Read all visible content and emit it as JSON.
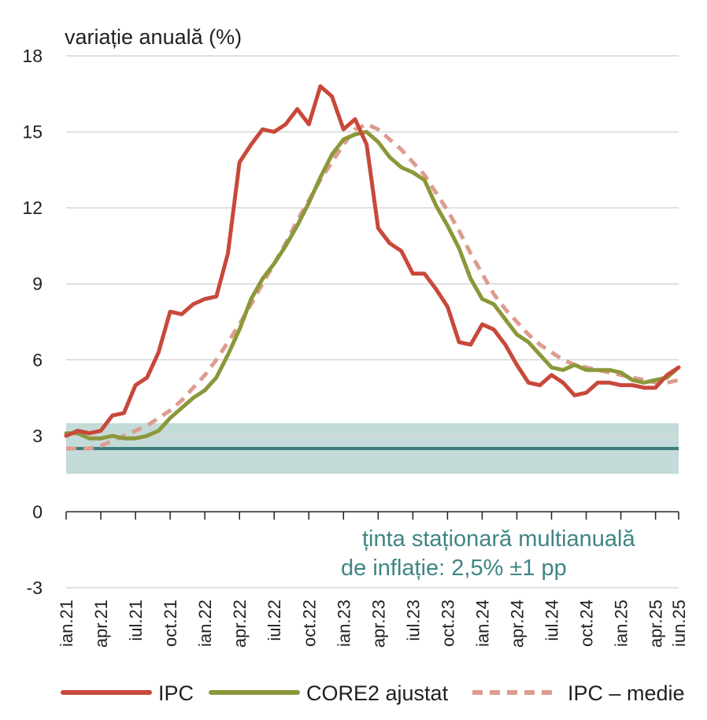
{
  "colors": {
    "ipc": "#c8483a",
    "core2": "#8c973a",
    "mean": "#dd9c8f",
    "target_line": "#3a7e7c",
    "target_band": "#c3dcd9",
    "grid": "#d6d6d6",
    "axis": "#231f20"
  },
  "chart_data": {
    "type": "line",
    "ylabel": "variație anuală (%)",
    "ylim": [
      -3,
      18
    ],
    "yticks": [
      -3,
      0,
      3,
      6,
      9,
      12,
      15,
      18
    ],
    "grid": true,
    "legend_position": "bottom",
    "x": [
      "ian.21",
      "feb.21",
      "mar.21",
      "apr.21",
      "mai.21",
      "iun.21",
      "iul.21",
      "aug.21",
      "sep.21",
      "oct.21",
      "nov.21",
      "dec.21",
      "ian.22",
      "feb.22",
      "mar.22",
      "apr.22",
      "mai.22",
      "iun.22",
      "iul.22",
      "aug.22",
      "sep.22",
      "oct.22",
      "nov.22",
      "dec.22",
      "ian.23",
      "feb.23",
      "mar.23",
      "apr.23",
      "mai.23",
      "iun.23",
      "iul.23",
      "aug.23",
      "sep.23",
      "oct.23",
      "nov.23",
      "dec.23",
      "ian.24",
      "feb.24",
      "mar.24",
      "apr.24",
      "mai.24",
      "iun.24",
      "iul.24",
      "aug.24",
      "sep.24",
      "oct.24",
      "nov.24",
      "dec.24",
      "ian.25",
      "feb.25",
      "mar.25",
      "apr.25",
      "mai.25",
      "iun.25"
    ],
    "x_tick_labels": [
      {
        "label": "ian.21",
        "index": 0
      },
      {
        "label": "apr.21",
        "index": 3
      },
      {
        "label": "iul.21",
        "index": 6
      },
      {
        "label": "oct.21",
        "index": 9
      },
      {
        "label": "ian.22",
        "index": 12
      },
      {
        "label": "apr.22",
        "index": 15
      },
      {
        "label": "iul.22",
        "index": 18
      },
      {
        "label": "oct.22",
        "index": 21
      },
      {
        "label": "ian.23",
        "index": 24
      },
      {
        "label": "apr.23",
        "index": 27
      },
      {
        "label": "iul.23",
        "index": 30
      },
      {
        "label": "oct.23",
        "index": 33
      },
      {
        "label": "ian.24",
        "index": 36
      },
      {
        "label": "apr.24",
        "index": 39
      },
      {
        "label": "iul.24",
        "index": 42
      },
      {
        "label": "oct.24",
        "index": 45
      },
      {
        "label": "ian.25",
        "index": 48
      },
      {
        "label": "apr.25",
        "index": 51
      },
      {
        "label": "iun.25",
        "index": 53
      }
    ],
    "series": [
      {
        "name": "IPC",
        "style": "solid",
        "values": [
          3.0,
          3.2,
          3.1,
          3.2,
          3.8,
          3.9,
          5.0,
          5.3,
          6.3,
          7.9,
          7.8,
          8.2,
          8.4,
          8.5,
          10.2,
          13.8,
          14.5,
          15.1,
          15.0,
          15.3,
          15.9,
          15.3,
          16.8,
          16.4,
          15.1,
          15.5,
          14.5,
          11.2,
          10.6,
          10.3,
          9.4,
          9.4,
          8.8,
          8.1,
          6.7,
          6.6,
          7.4,
          7.2,
          6.6,
          5.8,
          5.1,
          5.0,
          5.4,
          5.1,
          4.6,
          4.7,
          5.1,
          5.1,
          5.0,
          5.0,
          4.9,
          4.9,
          5.4,
          5.7
        ]
      },
      {
        "name": "CORE2 ajustat",
        "style": "solid",
        "values": [
          3.1,
          3.1,
          2.9,
          2.9,
          3.0,
          2.9,
          2.9,
          3.0,
          3.2,
          3.7,
          4.1,
          4.5,
          4.8,
          5.3,
          6.2,
          7.2,
          8.4,
          9.2,
          9.8,
          10.5,
          11.3,
          12.2,
          13.2,
          14.1,
          14.7,
          14.9,
          15.0,
          14.6,
          14.0,
          13.6,
          13.4,
          13.1,
          12.1,
          11.3,
          10.4,
          9.2,
          8.4,
          8.2,
          7.6,
          7.0,
          6.7,
          6.2,
          5.7,
          5.6,
          5.8,
          5.6,
          5.6,
          5.6,
          5.5,
          5.2,
          5.1,
          5.2,
          5.3,
          5.7
        ]
      },
      {
        "name": "IPC – medie",
        "style": "dashed",
        "values": [
          2.5,
          2.5,
          2.5,
          2.6,
          2.8,
          3.0,
          3.2,
          3.4,
          3.7,
          4.0,
          4.4,
          4.9,
          5.4,
          6.0,
          6.7,
          7.4,
          8.2,
          9.0,
          9.8,
          10.6,
          11.5,
          12.3,
          13.1,
          13.8,
          14.5,
          15.1,
          15.3,
          15.1,
          14.7,
          14.3,
          13.8,
          13.3,
          12.6,
          11.9,
          11.1,
          10.2,
          9.4,
          8.6,
          8.0,
          7.5,
          7.0,
          6.6,
          6.3,
          6.0,
          5.8,
          5.7,
          5.6,
          5.5,
          5.4,
          5.3,
          5.2,
          5.1,
          5.1,
          5.2
        ]
      }
    ],
    "target": {
      "value": 2.5,
      "band": [
        1.5,
        3.5
      ]
    },
    "annotation": [
      "ținta staționară multianuală",
      "de inflație: 2,5% ±1 pp"
    ]
  },
  "legend": [
    {
      "label": "IPC",
      "style": "solid",
      "color_key": "ipc"
    },
    {
      "label": "CORE2 ajustat",
      "style": "solid",
      "color_key": "core2"
    },
    {
      "label": "IPC – medie",
      "style": "dashed",
      "color_key": "mean"
    }
  ]
}
